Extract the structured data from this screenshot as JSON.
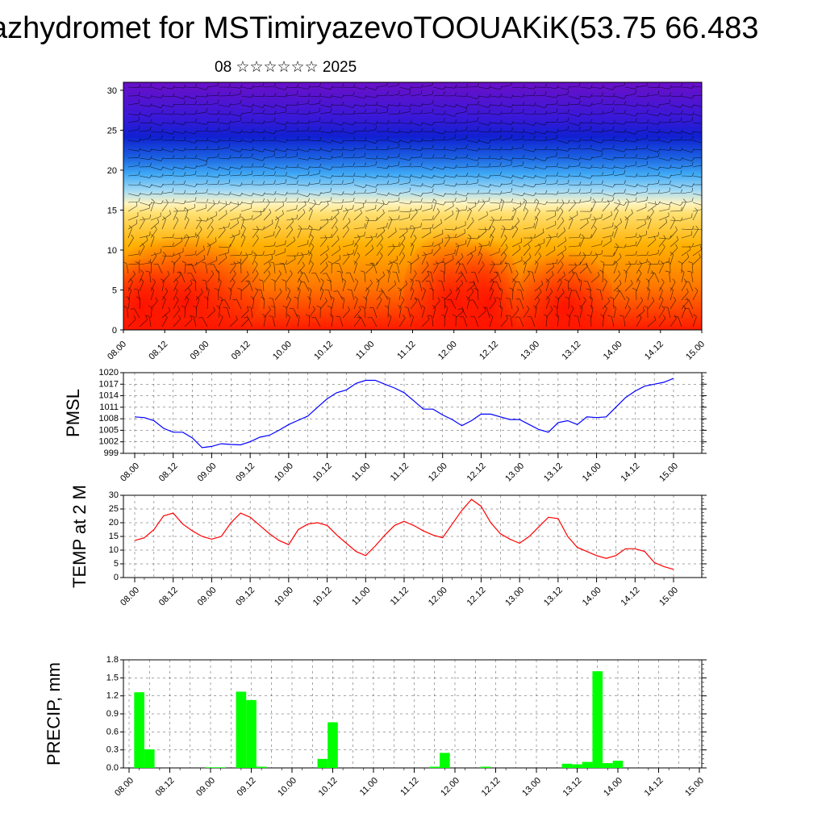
{
  "header": {
    "title": "azhydromet for MSTimiryazevoTOOUAKiK(53.75 66.483",
    "subtitle": "08 ☆☆☆☆☆☆ 2025"
  },
  "chart_data": [
    {
      "type": "heatmap",
      "title": "",
      "xlabel": "",
      "ylabel": "",
      "x_tick_labels": [
        "08.00",
        "08.12",
        "09.00",
        "09.12",
        "10.00",
        "10.12",
        "11.00",
        "11.12",
        "12.00",
        "12.12",
        "13.00",
        "13.12",
        "14.00",
        "14.12",
        "15.00"
      ],
      "y_ticks": [
        0,
        5,
        10,
        15,
        20,
        25,
        30
      ],
      "ylim": [
        0,
        31
      ],
      "colorscale_description": "red (warm, near surface) to orange/yellow (mid levels) to light blue, blue and purple (cold, upper levels)",
      "overlay": "wind barbs",
      "colors": {
        "warm": "#ff1a00",
        "mid": "#ff9900",
        "light": "#fff2a0",
        "cool": "#3fa9f5",
        "cold": "#1020d0",
        "top": "#6a10c8"
      }
    },
    {
      "type": "line",
      "ylabel": "PMSL",
      "x_tick_labels": [
        "08.00",
        "08.12",
        "09.00",
        "09.12",
        "10.00",
        "10.12",
        "11.00",
        "11.12",
        "12.00",
        "12.12",
        "13.00",
        "13.12",
        "14.00",
        "14.12",
        "15.00"
      ],
      "y_ticks": [
        999,
        1002,
        1005,
        1008,
        1011,
        1014,
        1017,
        1020
      ],
      "ylim": [
        999,
        1020
      ],
      "color": "#0000ff",
      "x": [
        0,
        3,
        6,
        9,
        12,
        15,
        18,
        21,
        24,
        27,
        30,
        33,
        36,
        39,
        42,
        45,
        48,
        51,
        54,
        57,
        60,
        63,
        66,
        69,
        72,
        75,
        78,
        81,
        84,
        87,
        90,
        93,
        96,
        99,
        102,
        105,
        108,
        111,
        114,
        117,
        120,
        123,
        126,
        129,
        132,
        135,
        138,
        141,
        144,
        147,
        150,
        153,
        156,
        159,
        162,
        165,
        168
      ],
      "values": [
        1008.5,
        1008.3,
        1007.5,
        1005.5,
        1004.5,
        1004.5,
        1003,
        1000.5,
        1000.8,
        1001.5,
        1001.3,
        1001.2,
        1002,
        1003.2,
        1003.7,
        1005,
        1006.5,
        1007.6,
        1008.7,
        1011,
        1013.2,
        1014.8,
        1015.5,
        1017.2,
        1018,
        1018,
        1017,
        1016,
        1014.8,
        1012.7,
        1010.5,
        1010.5,
        1009,
        1007.8,
        1006.2,
        1007.5,
        1009.2,
        1009.2,
        1008.5,
        1007.8,
        1007.8,
        1006.5,
        1005.2,
        1004.5,
        1007,
        1007.5,
        1006.5,
        1008.5,
        1008.3,
        1008.5,
        1011,
        1013.5,
        1015.2,
        1016.5,
        1017,
        1017.5,
        1018.5
      ]
    },
    {
      "type": "line",
      "ylabel": "TEMP at 2 M",
      "x_tick_labels": [
        "08.00",
        "08.12",
        "09.00",
        "09.12",
        "10.00",
        "10.12",
        "11.00",
        "11.12",
        "12.00",
        "12.12",
        "13.00",
        "13.12",
        "14.00",
        "14.12",
        "15.00"
      ],
      "y_ticks": [
        0,
        5,
        10,
        15,
        20,
        25,
        30
      ],
      "ylim": [
        0,
        30
      ],
      "color": "#ff0000",
      "x": [
        0,
        3,
        6,
        9,
        12,
        15,
        18,
        21,
        24,
        27,
        30,
        33,
        36,
        39,
        42,
        45,
        48,
        51,
        54,
        57,
        60,
        63,
        66,
        69,
        72,
        75,
        78,
        81,
        84,
        87,
        90,
        93,
        96,
        99,
        102,
        105,
        108,
        111,
        114,
        117,
        120,
        123,
        126,
        129,
        132,
        135,
        138,
        141,
        144,
        147,
        150,
        153,
        156,
        159,
        162,
        165,
        168
      ],
      "values": [
        13.5,
        14.5,
        17.5,
        22.5,
        23.5,
        19.5,
        17,
        15,
        14,
        15,
        20,
        23.5,
        22,
        19,
        16,
        13.5,
        12,
        17.5,
        19.5,
        20,
        19,
        15.5,
        12.5,
        9.5,
        8,
        11.5,
        15.5,
        19,
        20.5,
        19,
        17,
        15.5,
        14.5,
        19.5,
        24.5,
        28.5,
        26,
        20,
        16,
        14,
        12.5,
        15,
        18.5,
        22,
        21.5,
        15,
        11,
        9.5,
        8,
        7,
        8,
        10.5,
        10.5,
        9.5,
        5.5,
        4,
        3
      ]
    },
    {
      "type": "bar",
      "ylabel": "PRECIP, mm",
      "x_tick_labels": [
        "08.00",
        "08.12",
        "09.00",
        "09.12",
        "10.00",
        "10.12",
        "11.00",
        "11.12",
        "12.00",
        "12.12",
        "13.00",
        "13.12",
        "14.00",
        "14.12",
        "15.00"
      ],
      "y_ticks": [
        "0.0",
        "0.3",
        "0.6",
        "0.9",
        "1.2",
        "1.5",
        "1.8"
      ],
      "ylim": [
        0,
        1.8
      ],
      "color": "#00ff00",
      "x": [
        3,
        6,
        24,
        27,
        33,
        36,
        39,
        57,
        60,
        90,
        93,
        105,
        129,
        132,
        135,
        138,
        141,
        144
      ],
      "values": [
        1.26,
        0.31,
        0.01,
        0.01,
        1.27,
        1.13,
        0.02,
        0.15,
        0.76,
        0.02,
        0.25,
        0.02,
        0.07,
        0.06,
        0.1,
        1.61,
        0.08,
        0.12
      ]
    }
  ]
}
